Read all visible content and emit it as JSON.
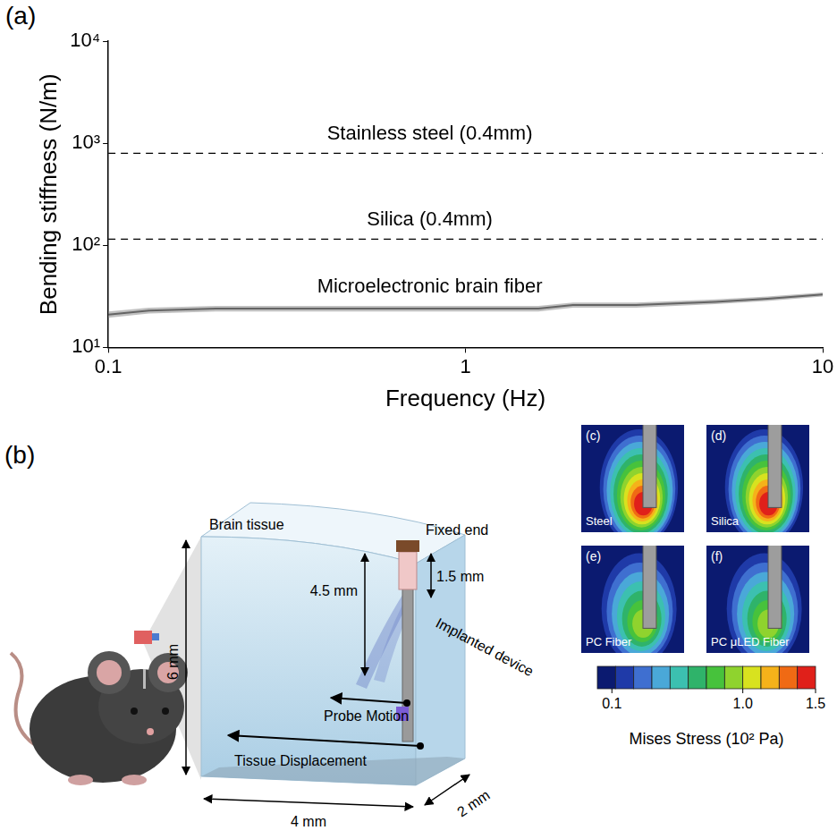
{
  "chart_data": {
    "type": "line",
    "panel_label": "(a)",
    "x_label": "Frequency (Hz)",
    "y_label": "Bending stiffness (N/m)",
    "log": true,
    "grid": false,
    "x": [
      0.1,
      0.13,
      0.2,
      0.5,
      1,
      1.6,
      2,
      3,
      5,
      7,
      10
    ],
    "xlim": [
      0.1,
      10
    ],
    "xticks": [
      0.1,
      1,
      10
    ],
    "ylim": [
      10,
      10000
    ],
    "yticks": [
      {
        "value": 10,
        "label": "10¹"
      },
      {
        "value": 100,
        "label": "10²"
      },
      {
        "value": 1000,
        "label": "10³"
      },
      {
        "value": 10000,
        "label": "10⁴"
      }
    ],
    "series": [
      {
        "name": "Stainless steel (0.4mm)",
        "color": "#000000",
        "line_style": "dashed",
        "values": [
          800,
          800,
          800,
          800,
          800,
          800,
          800,
          800,
          800,
          800,
          800
        ]
      },
      {
        "name": "Silica (0.4mm)",
        "color": "#000000",
        "line_style": "dashed",
        "values": [
          115,
          115,
          115,
          115,
          115,
          115,
          115,
          115,
          115,
          115,
          115
        ]
      },
      {
        "name": "Microelectronic brain fiber",
        "color": "#1a1a1a",
        "line_style": "solid",
        "values": [
          21,
          23,
          24,
          24,
          24,
          24,
          26,
          26,
          28,
          30,
          33
        ],
        "error": [
          1.5,
          1.5,
          1.5,
          1.5,
          1.5,
          1.5,
          1.5,
          1.5,
          1.5,
          1.5,
          1.5
        ]
      }
    ]
  },
  "diagram": {
    "panel_label": "(b)",
    "labels": {
      "brain_tissue": "Brain tissue",
      "fixed_end": "Fixed end",
      "fixed_length": "1.5 mm",
      "insert_depth": "4.5 mm",
      "height": "6 mm",
      "device": "Implanted device",
      "probe_motion": "Probe Motion",
      "tissue_displacement": "Tissue Displacement",
      "width": "4 mm",
      "depth": "2 mm"
    },
    "stress_maps": [
      {
        "panel_label": "(c)",
        "name": "Steel",
        "peak": 1.5
      },
      {
        "panel_label": "(d)",
        "name": "Silica",
        "peak": 1.5
      },
      {
        "panel_label": "(e)",
        "name": "PC Fiber",
        "peak": 1.0
      },
      {
        "panel_label": "(f)",
        "name": "PC μLED Fiber",
        "peak": 1.0
      }
    ],
    "colorbar": {
      "title": "Mises Stress (10² Pa)",
      "range": [
        0,
        1.5
      ],
      "ticks": [
        {
          "value": 0.1,
          "label": "0.1"
        },
        {
          "value": 1,
          "label": "1.0"
        },
        {
          "value": 1.5,
          "label": "1.5"
        }
      ],
      "colors": [
        "#0b1a70",
        "#1f3aa8",
        "#3f6fd0",
        "#4aa8d8",
        "#3cc0b0",
        "#2fb36a",
        "#47c23c",
        "#8fd32e",
        "#d8e21f",
        "#f5b21a",
        "#f06a14",
        "#e0201a"
      ]
    }
  }
}
